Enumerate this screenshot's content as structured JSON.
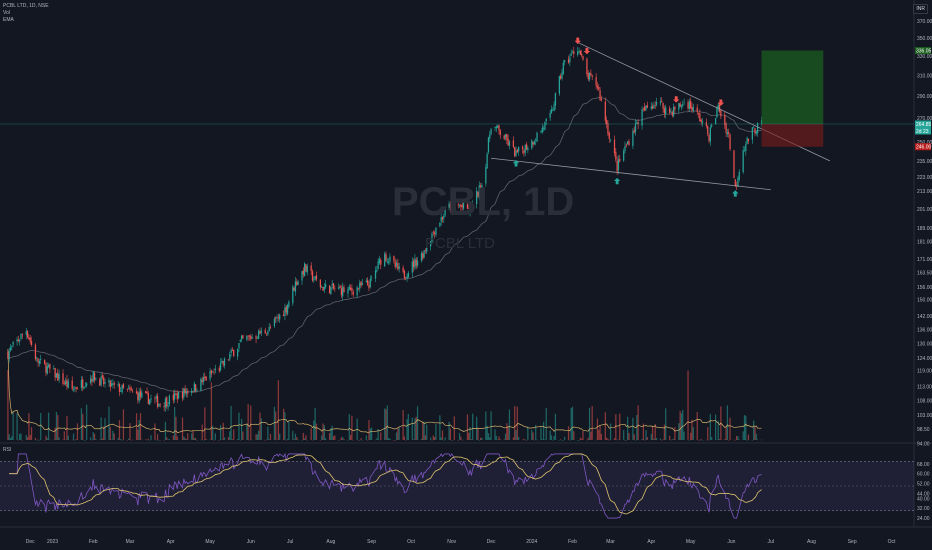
{
  "header": {
    "symbol_line": "PCBL LTD, 1D, NSE",
    "indicator_vol": "Vol",
    "indicator_ema": "EMA",
    "currency": "INR"
  },
  "watermark": {
    "ticker": "PCBL, 1D",
    "name": "PCBL LTD"
  },
  "price_axis": {
    "labels": [
      "370.00",
      "350.00",
      "330.00",
      "310.00",
      "290.00",
      "270.00",
      "250.00",
      "235.00",
      "223.00",
      "213.00",
      "201.00",
      "189.00",
      "181.00",
      "171.00",
      "163.50",
      "156.00",
      "150.00",
      "142.00",
      "136.00",
      "130.00",
      "124.00",
      "119.00",
      "113.00",
      "108.00",
      "103.00",
      "98.50",
      "94.00"
    ],
    "target_badge": "336.05",
    "last_badge": "264.85",
    "last_badge2": "2d 23",
    "stop_badge": "246.00"
  },
  "rsi": {
    "label": "RSI",
    "axis_labels": [
      "68.00",
      "60.00",
      "52.00",
      "44.00",
      "40.00",
      "32.00",
      "24.00"
    ]
  },
  "time_axis": {
    "labels": [
      "Dec",
      "2023",
      "Feb",
      "Mar",
      "Apr",
      "May",
      "Jun",
      "Jul",
      "Aug",
      "Sep",
      "Oct",
      "Nov",
      "Dec",
      "2024",
      "Feb",
      "Mar",
      "Apr",
      "May",
      "Jun",
      "Jul",
      "Aug",
      "Sep",
      "Oct"
    ]
  },
  "chart_data": {
    "type": "candlestick",
    "title": "PCBL LTD, 1D, NSE",
    "currency": "INR",
    "price_scale": "log",
    "ylim": [
      94,
      370
    ],
    "close_anchors": [
      {
        "date": "2022-11-28",
        "close": 126
      },
      {
        "date": "2022-12-12",
        "close": 136
      },
      {
        "date": "2022-12-20",
        "close": 123
      },
      {
        "date": "2023-01-02",
        "close": 118
      },
      {
        "date": "2023-01-16",
        "close": 112
      },
      {
        "date": "2023-02-01",
        "close": 117
      },
      {
        "date": "2023-02-10",
        "close": 114
      },
      {
        "date": "2023-03-01",
        "close": 111
      },
      {
        "date": "2023-03-25",
        "close": 107
      },
      {
        "date": "2023-04-20",
        "close": 113
      },
      {
        "date": "2023-05-10",
        "close": 121
      },
      {
        "date": "2023-05-25",
        "close": 131
      },
      {
        "date": "2023-06-15",
        "close": 136
      },
      {
        "date": "2023-06-28",
        "close": 146
      },
      {
        "date": "2023-07-05",
        "close": 158
      },
      {
        "date": "2023-07-12",
        "close": 166
      },
      {
        "date": "2023-07-25",
        "close": 156
      },
      {
        "date": "2023-08-15",
        "close": 154
      },
      {
        "date": "2023-08-31",
        "close": 158
      },
      {
        "date": "2023-09-10",
        "close": 174
      },
      {
        "date": "2023-09-25",
        "close": 162
      },
      {
        "date": "2023-10-10",
        "close": 174
      },
      {
        "date": "2023-10-20",
        "close": 190
      },
      {
        "date": "2023-11-01",
        "close": 205
      },
      {
        "date": "2023-11-15",
        "close": 200
      },
      {
        "date": "2023-11-25",
        "close": 220
      },
      {
        "date": "2023-12-01",
        "close": 265
      },
      {
        "date": "2023-12-10",
        "close": 255
      },
      {
        "date": "2023-12-20",
        "close": 240
      },
      {
        "date": "2024-01-01",
        "close": 250
      },
      {
        "date": "2024-01-15",
        "close": 270
      },
      {
        "date": "2024-01-25",
        "close": 320
      },
      {
        "date": "2024-02-05",
        "close": 340
      },
      {
        "date": "2024-02-12",
        "close": 310
      },
      {
        "date": "2024-02-20",
        "close": 300
      },
      {
        "date": "2024-02-28",
        "close": 260
      },
      {
        "date": "2024-03-06",
        "close": 230
      },
      {
        "date": "2024-03-12",
        "close": 245
      },
      {
        "date": "2024-03-25",
        "close": 275
      },
      {
        "date": "2024-04-05",
        "close": 285
      },
      {
        "date": "2024-04-15",
        "close": 275
      },
      {
        "date": "2024-04-28",
        "close": 285
      },
      {
        "date": "2024-05-08",
        "close": 270
      },
      {
        "date": "2024-05-15",
        "close": 255
      },
      {
        "date": "2024-05-22",
        "close": 280
      },
      {
        "date": "2024-05-30",
        "close": 255
      },
      {
        "date": "2024-06-04",
        "close": 215
      },
      {
        "date": "2024-06-10",
        "close": 245
      },
      {
        "date": "2024-06-18",
        "close": 260
      },
      {
        "date": "2024-06-24",
        "close": 264.85
      }
    ],
    "trendlines": [
      {
        "name": "upper",
        "from": {
          "date": "2024-02-05",
          "price": 345
        },
        "to": {
          "date": "2024-08-15",
          "price": 235
        }
      },
      {
        "name": "lower",
        "from": {
          "date": "2023-12-01",
          "price": 237
        },
        "to": {
          "date": "2024-07-01",
          "price": 214
        }
      }
    ],
    "markers_down": [
      "2024-02-05",
      "2024-02-12",
      "2024-04-20",
      "2024-05-24"
    ],
    "markers_up": [
      "2023-12-20",
      "2024-03-06",
      "2024-06-04"
    ],
    "position": {
      "entry": 264.85,
      "target": 336.05,
      "stop": 246.0,
      "from": "2024-06-24",
      "to": "2024-08-10"
    },
    "ema_color": "#5d606b",
    "up_color": "#26a69a",
    "down_color": "#ef5350",
    "volume_ma_color": "#d4b26a",
    "rsi_color": "#7e57c2",
    "rsi_ma_color": "#e0c56e"
  }
}
